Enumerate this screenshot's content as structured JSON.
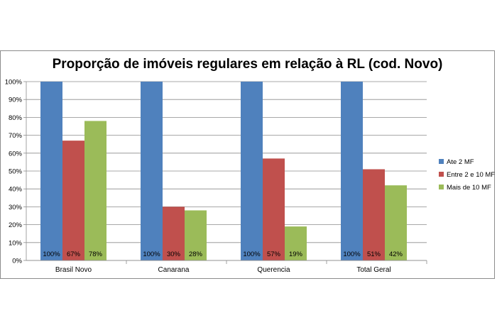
{
  "chart_data": {
    "type": "bar",
    "title": "Proporção de imóveis regulares em relação à RL (cod. Novo)",
    "categories": [
      "Brasil Novo",
      "Canarana",
      "Querencia",
      "Total Geral"
    ],
    "series": [
      {
        "name": "Ate 2 MF",
        "color": "#4f81bd",
        "values": [
          100,
          100,
          100,
          100
        ],
        "labels": [
          "100%",
          "100%",
          "100%",
          "100%"
        ]
      },
      {
        "name": "Entre 2 e 10 MF",
        "color": "#c0504d",
        "values": [
          67,
          30,
          57,
          51
        ],
        "labels": [
          "67%",
          "30%",
          "57%",
          "51%"
        ]
      },
      {
        "name": "Mais de 10 MF",
        "color": "#9bbb59",
        "values": [
          78,
          28,
          19,
          42
        ],
        "labels": [
          "78%",
          "28%",
          "19%",
          "42%"
        ]
      }
    ],
    "ylim": [
      0,
      100
    ],
    "yticks": [
      "0%",
      "10%",
      "20%",
      "30%",
      "40%",
      "50%",
      "60%",
      "70%",
      "80%",
      "90%",
      "100%"
    ],
    "grid": true,
    "legend_position": "right"
  }
}
